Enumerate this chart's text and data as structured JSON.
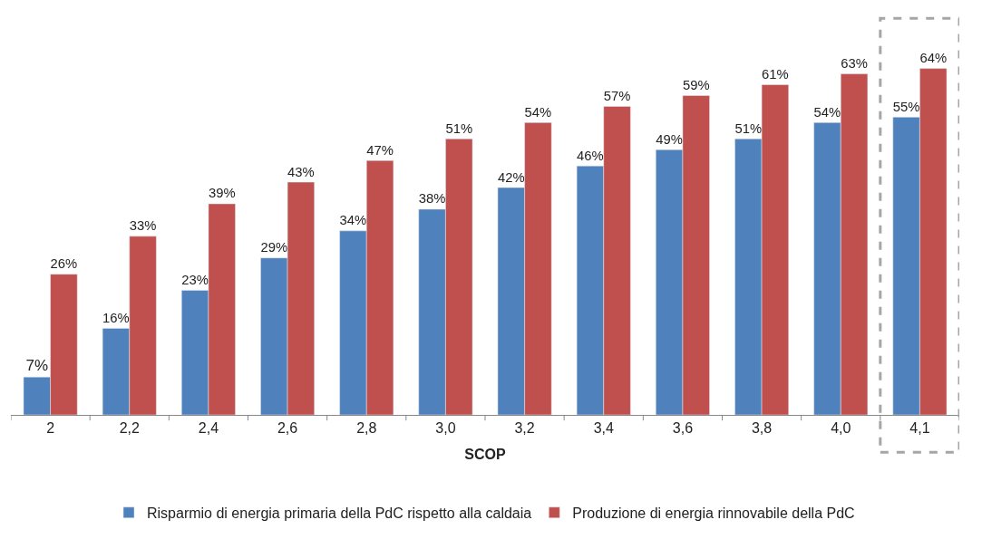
{
  "chart_data": {
    "type": "bar",
    "xlabel": "SCOP",
    "categories": [
      "2",
      "2,2",
      "2,4",
      "2,6",
      "2,8",
      "3,0",
      "3,2",
      "3,4",
      "3,6",
      "3,8",
      "4,0",
      "4,1"
    ],
    "series": [
      {
        "name": "Risparmio di energia primaria della PdC rispetto alla caldaia",
        "color": "#4f81bd",
        "values": [
          7,
          16,
          23,
          29,
          34,
          38,
          42,
          46,
          49,
          51,
          54,
          55
        ],
        "value_labels": [
          "7%",
          "16%",
          "23%",
          "29%",
          "34%",
          "38%",
          "42%",
          "46%",
          "49%",
          "51%",
          "54%",
          "55%"
        ]
      },
      {
        "name": "Produzione di energia rinnovabile della PdC",
        "color": "#c0504d",
        "values": [
          26,
          33,
          39,
          43,
          47,
          51,
          54,
          57,
          59,
          61,
          63,
          64
        ],
        "value_labels": [
          "26%",
          "33%",
          "39%",
          "43%",
          "47%",
          "51%",
          "54%",
          "57%",
          "59%",
          "61%",
          "63%",
          "64%"
        ]
      }
    ],
    "legend": "bottom"
  }
}
